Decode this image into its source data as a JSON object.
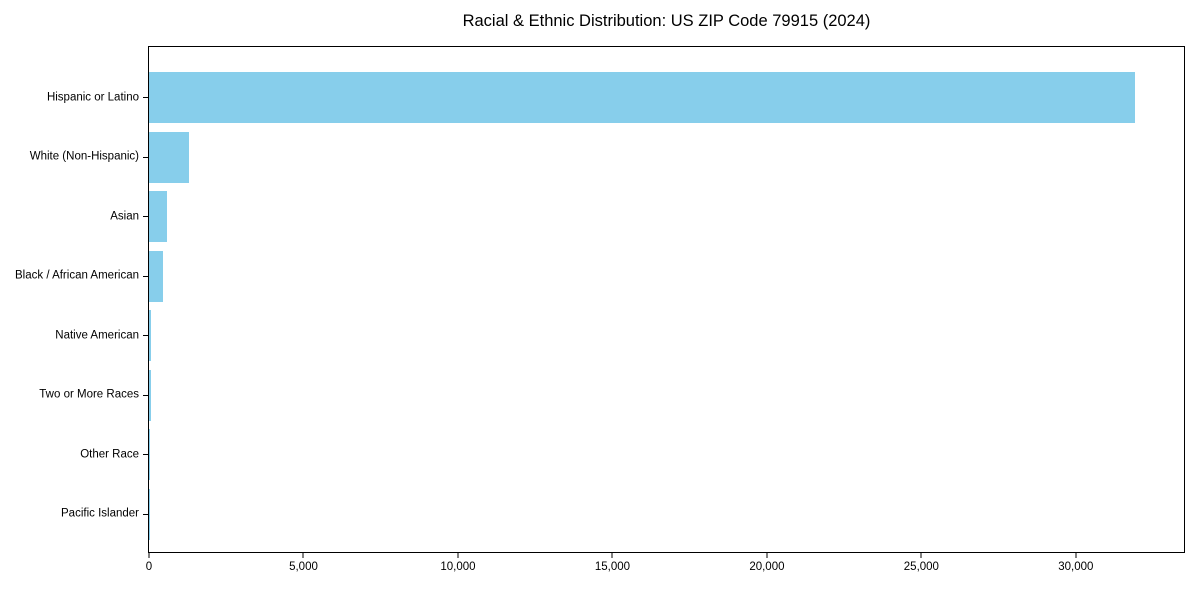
{
  "chart_data": {
    "type": "bar",
    "orientation": "horizontal",
    "title": "Racial & Ethnic Distribution: US ZIP Code 79915 (2024)",
    "categories": [
      "Hispanic or Latino",
      "White (Non-Hispanic)",
      "Asian",
      "Black / African American",
      "Native American",
      "Two or More Races",
      "Other Race",
      "Pacific Islander"
    ],
    "values": [
      31900,
      1300,
      580,
      450,
      60,
      50,
      25,
      10
    ],
    "xlabel": "",
    "ylabel": "",
    "xlim": [
      0,
      33500
    ],
    "xticks": [
      0,
      5000,
      10000,
      15000,
      20000,
      25000,
      30000
    ],
    "xtick_labels": [
      "0",
      "5,000",
      "10,000",
      "15,000",
      "20,000",
      "25,000",
      "30,000"
    ],
    "grid": false,
    "legend": "none",
    "bar_color": "#87CEEB",
    "axis_color": "#000000",
    "text_color": "#000000",
    "background_color": "#ffffff"
  }
}
